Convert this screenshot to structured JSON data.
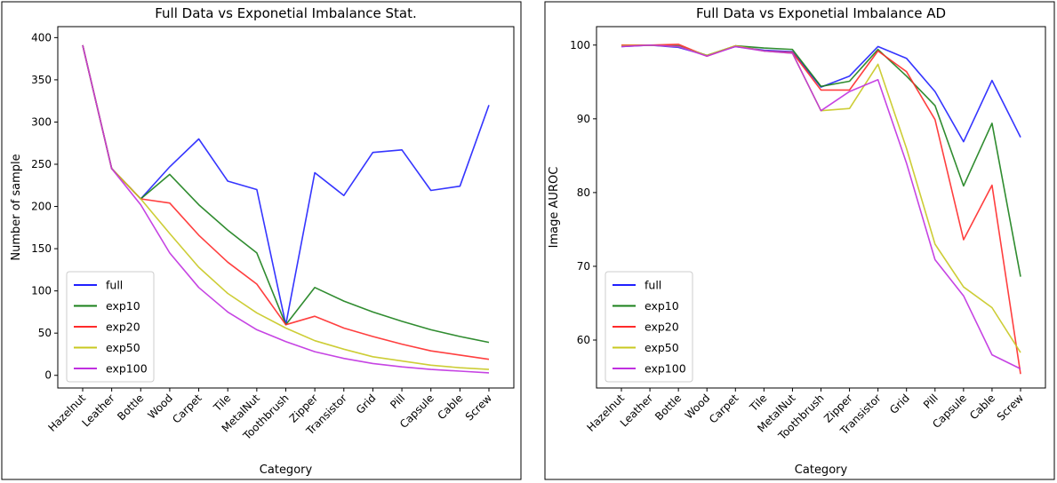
{
  "chart_data": [
    {
      "type": "line",
      "title": "Full Data vs Exponetial Imbalance Stat.",
      "xlabel": "Category",
      "ylabel": "Number of sample",
      "ylim": [
        -15,
        413
      ],
      "yticks": [
        0,
        50,
        100,
        150,
        200,
        250,
        300,
        350,
        400
      ],
      "legend": "lower-left",
      "grid": false,
      "categories": [
        "Hazelnut",
        "Leather",
        "Bottle",
        "Wood",
        "Carpet",
        "Tile",
        "MetalNut",
        "Toothbrush",
        "Zipper",
        "Transistor",
        "Grid",
        "Pill",
        "Capsule",
        "Cable",
        "Screw"
      ],
      "series": [
        {
          "name": "full",
          "color": "#1f1fff",
          "values": [
            391,
            245,
            209,
            247,
            280,
            230,
            220,
            60,
            240,
            213,
            264,
            267,
            219,
            224,
            320
          ]
        },
        {
          "name": "exp10",
          "color": "#1a801a",
          "values": [
            391,
            245,
            209,
            238,
            202,
            172,
            145,
            60,
            104,
            88,
            75,
            64,
            54,
            46,
            39
          ]
        },
        {
          "name": "exp20",
          "color": "#ff2a2a",
          "values": [
            391,
            245,
            209,
            204,
            166,
            134,
            108,
            60,
            70,
            56,
            46,
            37,
            29,
            24,
            19
          ]
        },
        {
          "name": "exp50",
          "color": "#c8c820",
          "values": [
            391,
            245,
            209,
            168,
            128,
            97,
            74,
            56,
            41,
            31,
            22,
            17,
            12,
            9,
            7
          ]
        },
        {
          "name": "exp100",
          "color": "#c030e0",
          "values": [
            391,
            245,
            202,
            145,
            104,
            75,
            54,
            40,
            28,
            20,
            14,
            10,
            7,
            5,
            3
          ]
        }
      ]
    },
    {
      "type": "line",
      "title": "Full Data vs Exponetial Imbalance AD",
      "xlabel": "Category",
      "ylabel": "Image AUROC",
      "ylim": [
        53.5,
        102.5
      ],
      "yticks": [
        60,
        70,
        80,
        90,
        100
      ],
      "legend": "lower-left",
      "grid": false,
      "categories": [
        "Hazelnut",
        "Leather",
        "Bottle",
        "Wood",
        "Carpet",
        "Tile",
        "MetalNut",
        "Toothbrush",
        "Zipper",
        "Transistor",
        "Grid",
        "Pill",
        "Capsule",
        "Cable",
        "Screw"
      ],
      "series": [
        {
          "name": "full",
          "color": "#1f1fff",
          "values": [
            99.8,
            100.0,
            99.7,
            98.6,
            99.8,
            99.3,
            99.1,
            94.3,
            95.8,
            99.8,
            98.2,
            93.7,
            86.9,
            95.2,
            87.5
          ]
        },
        {
          "name": "exp10",
          "color": "#1a801a",
          "values": [
            99.9,
            100.0,
            99.9,
            98.6,
            99.9,
            99.6,
            99.4,
            94.4,
            95.1,
            99.4,
            95.8,
            91.8,
            80.9,
            89.4,
            68.6
          ]
        },
        {
          "name": "exp20",
          "color": "#ff2a2a",
          "values": [
            100.0,
            100.0,
            100.1,
            98.5,
            99.9,
            99.2,
            99.0,
            93.9,
            93.9,
            99.2,
            96.4,
            89.9,
            73.6,
            81.0,
            55.4
          ]
        },
        {
          "name": "exp50",
          "color": "#c8c820",
          "values": [
            99.9,
            100.0,
            99.8,
            98.6,
            99.9,
            99.2,
            98.9,
            91.1,
            91.4,
            97.4,
            86.0,
            73.0,
            67.2,
            64.4,
            58.3
          ]
        },
        {
          "name": "exp100",
          "color": "#c030e0",
          "values": [
            99.8,
            100.0,
            99.8,
            98.5,
            99.8,
            99.2,
            98.9,
            91.1,
            93.7,
            95.3,
            84.0,
            70.9,
            66.0,
            58.0,
            56.1
          ]
        }
      ]
    }
  ]
}
